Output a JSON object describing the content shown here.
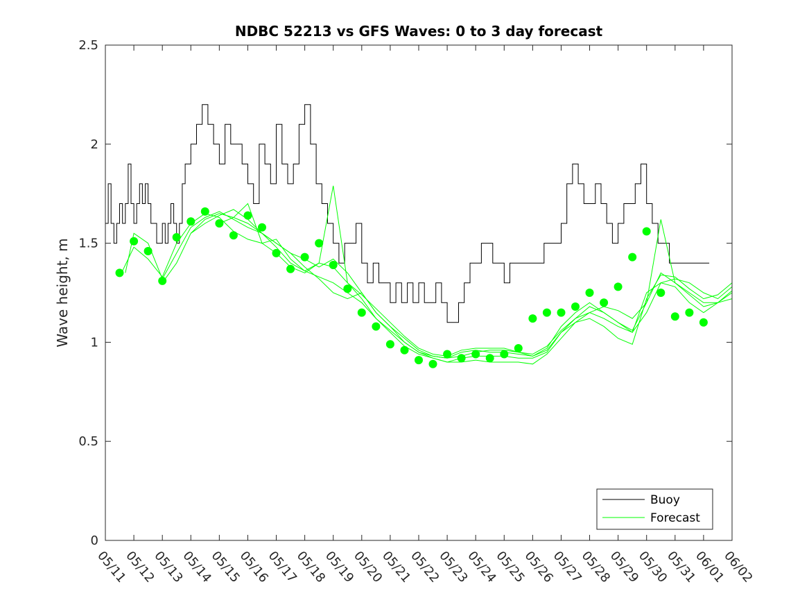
{
  "chart_data": {
    "type": "line",
    "title": "NDBC 52213 vs GFS Waves: 0 to 3 day forecast",
    "xlabel": "",
    "ylabel": "Wave height, m",
    "ylim": [
      0,
      2.5
    ],
    "yticks": [
      "0",
      "0.5",
      "1",
      "1.5",
      "2",
      "2.5"
    ],
    "xlim_days": [
      0,
      22
    ],
    "xticks": [
      "05/11",
      "05/12",
      "05/13",
      "05/14",
      "05/15",
      "05/16",
      "05/17",
      "05/18",
      "05/19",
      "05/20",
      "05/21",
      "05/22",
      "05/23",
      "05/24",
      "05/25",
      "05/26",
      "05/27",
      "05/28",
      "05/29",
      "05/30",
      "05/31",
      "06/01",
      "06/02"
    ],
    "legend": {
      "position": "bottom-right",
      "entries": [
        "Buoy",
        "Forecast"
      ]
    },
    "colors": {
      "buoy": "#000000",
      "forecast": "#00ff00"
    },
    "series": [
      {
        "name": "Buoy",
        "x": [
          0,
          0.1,
          0.2,
          0.3,
          0.4,
          0.5,
          0.6,
          0.7,
          0.8,
          0.9,
          1.0,
          1.1,
          1.2,
          1.3,
          1.4,
          1.5,
          1.6,
          1.7,
          1.8,
          2.0,
          2.1,
          2.2,
          2.3,
          2.4,
          2.5,
          2.6,
          2.7,
          2.8,
          2.9,
          3.0,
          3.2,
          3.4,
          3.6,
          3.8,
          4.0,
          4.2,
          4.4,
          4.6,
          4.8,
          5.0,
          5.2,
          5.4,
          5.6,
          5.8,
          6.0,
          6.2,
          6.4,
          6.6,
          6.8,
          7.0,
          7.2,
          7.4,
          7.6,
          7.8,
          8.0,
          8.2,
          8.4,
          8.6,
          8.8,
          9.0,
          9.2,
          9.4,
          9.6,
          9.8,
          10.0,
          10.2,
          10.4,
          10.6,
          10.8,
          11.0,
          11.2,
          11.4,
          11.6,
          11.8,
          12.0,
          12.2,
          12.4,
          12.6,
          12.8,
          13.0,
          13.2,
          13.4,
          13.6,
          13.8,
          14.0,
          14.2,
          14.4,
          14.6,
          14.8,
          15.0,
          15.2,
          15.4,
          15.6,
          15.8,
          16.0,
          16.2,
          16.4,
          16.6,
          16.8,
          17.0,
          17.2,
          17.4,
          17.6,
          17.8,
          18.0,
          18.2,
          18.4,
          18.6,
          18.8,
          19.0,
          19.2,
          19.4,
          19.6,
          19.8,
          20.0,
          20.2,
          20.4,
          20.6,
          20.8,
          21.0,
          21.2
        ],
        "values": [
          1.6,
          1.8,
          1.6,
          1.5,
          1.6,
          1.7,
          1.6,
          1.7,
          1.9,
          1.7,
          1.6,
          1.7,
          1.8,
          1.7,
          1.8,
          1.7,
          1.6,
          1.6,
          1.5,
          1.6,
          1.5,
          1.6,
          1.7,
          1.6,
          1.5,
          1.6,
          1.8,
          1.9,
          1.9,
          2.0,
          2.1,
          2.2,
          2.1,
          2.0,
          1.9,
          2.1,
          2.0,
          2.0,
          1.9,
          1.8,
          1.7,
          2.0,
          1.9,
          1.8,
          2.1,
          1.9,
          1.8,
          1.9,
          2.1,
          2.2,
          2.0,
          1.8,
          1.7,
          1.6,
          1.5,
          1.4,
          1.5,
          1.5,
          1.6,
          1.4,
          1.3,
          1.4,
          1.3,
          1.3,
          1.2,
          1.3,
          1.2,
          1.3,
          1.2,
          1.3,
          1.2,
          1.2,
          1.3,
          1.2,
          1.1,
          1.1,
          1.2,
          1.3,
          1.4,
          1.4,
          1.5,
          1.5,
          1.4,
          1.4,
          1.3,
          1.4,
          1.4,
          1.4,
          1.4,
          1.4,
          1.4,
          1.5,
          1.5,
          1.5,
          1.6,
          1.8,
          1.9,
          1.8,
          1.7,
          1.7,
          1.8,
          1.7,
          1.6,
          1.5,
          1.6,
          1.7,
          1.7,
          1.8,
          1.9,
          1.7,
          1.6,
          1.5,
          1.5,
          1.4,
          1.4,
          1.4,
          1.4,
          1.4,
          1.4,
          1.4,
          1.4
        ]
      },
      {
        "name": "Forecast",
        "x": [
          0.5,
          1,
          1.5,
          2,
          2.5,
          3,
          3.5,
          4,
          4.5,
          5,
          5.5,
          6,
          6.5,
          7,
          7.5,
          8,
          8.5,
          9,
          9.5,
          10,
          10.5,
          11,
          11.5,
          12,
          12.5,
          13,
          13.5,
          14,
          14.5,
          15,
          15.5,
          16,
          16.5,
          17,
          17.5,
          18,
          18.5,
          19,
          19.5,
          20,
          20.5,
          21,
          21.5,
          22
        ],
        "values": [
          1.33,
          1.48,
          1.42,
          1.33,
          1.5,
          1.6,
          1.65,
          1.63,
          1.56,
          1.52,
          1.5,
          1.45,
          1.38,
          1.35,
          1.4,
          1.38,
          1.3,
          1.22,
          1.12,
          1.05,
          0.98,
          0.94,
          0.92,
          0.9,
          0.92,
          0.93,
          0.93,
          0.93,
          0.92,
          0.92,
          0.95,
          1.05,
          1.12,
          1.15,
          1.18,
          1.16,
          1.12,
          1.2,
          1.35,
          1.3,
          1.25,
          1.2,
          1.2,
          1.25
        ]
      },
      {
        "name": "Forecast",
        "x": [
          0.7,
          1,
          1.5,
          2,
          2.5,
          3,
          3.5,
          4,
          4.5,
          5,
          5.5,
          6,
          6.5,
          7,
          7.5,
          8,
          8.5,
          9,
          9.5,
          10,
          10.5,
          11,
          11.5,
          12,
          12.5,
          13,
          13.5,
          14,
          14.5,
          15,
          15.5,
          16,
          16.5,
          17,
          17.5,
          18,
          18.5,
          19,
          19.5,
          20,
          20.5,
          21,
          21.5,
          22
        ],
        "values": [
          1.35,
          1.55,
          1.5,
          1.32,
          1.45,
          1.58,
          1.63,
          1.66,
          1.62,
          1.58,
          1.55,
          1.5,
          1.45,
          1.42,
          1.38,
          1.42,
          1.35,
          1.25,
          1.15,
          1.08,
          1.0,
          0.95,
          0.93,
          0.92,
          0.95,
          0.96,
          0.95,
          0.95,
          0.94,
          0.93,
          0.97,
          1.08,
          1.15,
          1.2,
          1.15,
          1.1,
          1.05,
          1.15,
          1.3,
          1.32,
          1.3,
          1.25,
          1.22,
          1.28
        ]
      },
      {
        "name": "Forecast",
        "x": [
          2,
          2.5,
          3,
          3.5,
          4,
          4.5,
          5,
          5.5,
          6,
          6.5,
          7,
          7.5,
          8,
          8.5,
          9,
          9.5,
          10,
          10.5,
          11,
          11.5,
          12,
          12.5,
          13,
          13.5,
          14,
          14.5,
          15,
          15.5,
          16,
          16.5,
          17,
          17.5,
          18,
          18.5,
          19,
          19.5,
          20,
          20.5,
          21,
          21.5,
          22
        ],
        "values": [
          1.3,
          1.4,
          1.55,
          1.62,
          1.65,
          1.63,
          1.6,
          1.55,
          1.48,
          1.4,
          1.36,
          1.33,
          1.3,
          1.25,
          1.2,
          1.12,
          1.06,
          1.0,
          0.95,
          0.92,
          0.9,
          0.9,
          0.91,
          0.9,
          0.9,
          0.9,
          0.89,
          0.94,
          1.02,
          1.1,
          1.15,
          1.12,
          1.08,
          1.05,
          1.25,
          1.3,
          1.28,
          1.2,
          1.15,
          1.2,
          1.22
        ]
      },
      {
        "name": "Forecast",
        "x": [
          3,
          3.5,
          4,
          4.5,
          5,
          5.5,
          6,
          6.5,
          7,
          7.5,
          8,
          8.5,
          9,
          9.5,
          10,
          10.5,
          11,
          11.5,
          12,
          12.5,
          13,
          13.5,
          14,
          14.5,
          15,
          15.5,
          16,
          16.5,
          17,
          17.5,
          18,
          18.5,
          19,
          19.5,
          20,
          20.5,
          21,
          21.5,
          22
        ],
        "values": [
          1.55,
          1.6,
          1.64,
          1.67,
          1.62,
          1.55,
          1.5,
          1.45,
          1.38,
          1.32,
          1.25,
          1.22,
          1.25,
          1.15,
          1.08,
          1.02,
          0.96,
          0.93,
          0.92,
          0.93,
          0.95,
          0.96,
          0.96,
          0.95,
          0.93,
          0.96,
          1.05,
          1.1,
          1.12,
          1.08,
          1.02,
          0.99,
          1.22,
          1.34,
          1.33,
          1.27,
          1.22,
          1.24,
          1.3
        ]
      },
      {
        "name": "Forecast",
        "x": [
          4,
          4.5,
          5,
          5.5,
          6,
          6.5,
          7,
          7.5,
          8,
          8.5,
          9,
          9.5,
          10,
          10.5,
          11,
          11.5,
          12,
          12.5,
          13,
          13.5,
          14,
          14.5,
          15,
          15.5,
          16,
          16.5,
          17,
          17.5,
          18,
          18.5,
          19,
          19.5,
          20,
          20.5,
          21,
          21.5,
          22
        ],
        "values": [
          1.6,
          1.63,
          1.7,
          1.5,
          1.52,
          1.42,
          1.36,
          1.4,
          1.79,
          1.3,
          1.24,
          1.17,
          1.1,
          1.03,
          0.97,
          0.94,
          0.93,
          0.96,
          0.97,
          0.97,
          0.97,
          0.95,
          0.94,
          0.98,
          1.06,
          1.12,
          1.18,
          1.15,
          1.1,
          1.06,
          1.2,
          1.62,
          1.3,
          1.24,
          1.18,
          1.2,
          1.26
        ]
      }
    ],
    "markers": {
      "name": "Forecast",
      "x": [
        0.5,
        1,
        1.5,
        2,
        2.5,
        3,
        3.5,
        4,
        4.5,
        5,
        5.5,
        6,
        6.5,
        7,
        7.5,
        8,
        8.5,
        9,
        9.5,
        10,
        10.5,
        11,
        11.5,
        12,
        12.5,
        13,
        13.5,
        14,
        14.5,
        15,
        15.5,
        16,
        16.5,
        17,
        17.5,
        18,
        18.5,
        19,
        19.5,
        20,
        20.5,
        21
      ],
      "values": [
        1.35,
        1.51,
        1.46,
        1.31,
        1.53,
        1.61,
        1.66,
        1.6,
        1.54,
        1.64,
        1.58,
        1.45,
        1.37,
        1.43,
        1.5,
        1.39,
        1.27,
        1.15,
        1.08,
        0.99,
        0.96,
        0.91,
        0.89,
        0.94,
        0.92,
        0.94,
        0.92,
        0.94,
        0.97,
        1.12,
        1.15,
        1.15,
        1.18,
        1.25,
        1.2,
        1.28,
        1.43,
        1.56,
        1.25,
        1.13,
        1.15,
        1.1
      ]
    }
  }
}
